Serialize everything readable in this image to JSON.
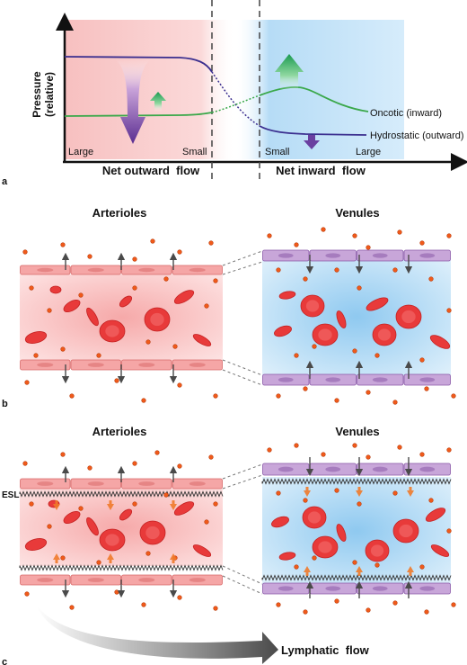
{
  "panel_a": {
    "letter": "a",
    "y_axis_label": "Pressure",
    "y_axis_sub": "(relative)",
    "size_left_large": "Large",
    "size_left_small": "Small",
    "size_right_small": "Small",
    "size_right_large": "Large",
    "curve_oncotic": "Oncotic (inward)",
    "curve_hydrostatic": "Hydrostatic (outward)",
    "net_outward": "Net outward  flow",
    "net_inward": "Net inward  flow"
  },
  "panel_b": {
    "letter": "b",
    "left_title": "Arterioles",
    "right_title": "Venules"
  },
  "panel_c": {
    "letter": "c",
    "left_title": "Arterioles",
    "right_title": "Venules",
    "esl_label": "ESL",
    "lymph_label": "Lymphatic  flow"
  },
  "colors": {
    "arteriole_bg": "#f9c9c9",
    "venule_bg": "#a9d6f5",
    "rbc": "#e83a3a",
    "endothelium_art": "#f5a6a6",
    "endothelium_ven": "#c8a6d9",
    "oncotic_line": "#3aa84a",
    "hydrostatic_line": "#3b2f8f",
    "arrow_purple": "#5a2d91",
    "arrow_green": "#1a9a50",
    "arrow_orange": "#f07a2a"
  }
}
